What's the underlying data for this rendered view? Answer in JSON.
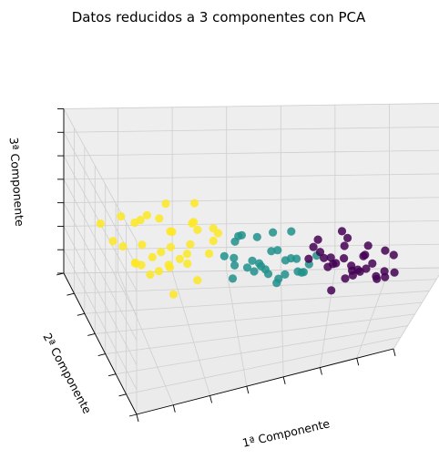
{
  "chart_data": {
    "type": "scatter",
    "title": "Datos reducidos a 3 componentes con PCA",
    "xlabel": "1ª Componente",
    "ylabel": "2ª Componente",
    "zlabel": "3ª Componente",
    "grid": true,
    "colors": {
      "cluster_0": "#440154",
      "cluster_1": "#21918c",
      "cluster_2": "#fde725"
    },
    "series": [
      {
        "color_key": "cluster_0",
        "points": [
          [
            0.72,
            0.15,
            0.55
          ],
          [
            0.76,
            0.2,
            0.48
          ],
          [
            0.8,
            0.12,
            0.42
          ],
          [
            0.84,
            0.25,
            0.38
          ],
          [
            0.7,
            0.28,
            0.52
          ],
          [
            0.78,
            0.3,
            0.45
          ],
          [
            0.86,
            0.18,
            0.5
          ],
          [
            0.9,
            0.22,
            0.35
          ],
          [
            0.74,
            0.35,
            0.4
          ],
          [
            0.82,
            0.38,
            0.33
          ],
          [
            0.88,
            0.1,
            0.46
          ],
          [
            0.68,
            0.2,
            0.6
          ],
          [
            0.92,
            0.3,
            0.3
          ],
          [
            0.8,
            0.42,
            0.28
          ],
          [
            0.75,
            0.08,
            0.58
          ],
          [
            0.85,
            0.32,
            0.44
          ],
          [
            0.94,
            0.15,
            0.4
          ],
          [
            0.72,
            0.4,
            0.36
          ],
          [
            0.78,
            0.22,
            0.65
          ],
          [
            0.88,
            0.4,
            0.25
          ],
          [
            0.66,
            0.3,
            0.48
          ],
          [
            0.83,
            0.05,
            0.52
          ],
          [
            0.96,
            0.25,
            0.34
          ],
          [
            0.7,
            0.12,
            0.68
          ],
          [
            0.86,
            0.45,
            0.32
          ],
          [
            0.79,
            0.33,
            0.55
          ],
          [
            0.91,
            0.38,
            0.42
          ],
          [
            0.74,
            0.25,
            0.3
          ],
          [
            0.89,
            0.08,
            0.6
          ],
          [
            0.81,
            0.28,
            0.38
          ],
          [
            0.77,
            0.46,
            0.44
          ],
          [
            0.93,
            0.44,
            0.36
          ]
        ]
      },
      {
        "color_key": "cluster_1",
        "points": [
          [
            0.4,
            0.2,
            0.58
          ],
          [
            0.45,
            0.28,
            0.5
          ],
          [
            0.5,
            0.35,
            0.45
          ],
          [
            0.55,
            0.25,
            0.4
          ],
          [
            0.48,
            0.42,
            0.38
          ],
          [
            0.58,
            0.4,
            0.35
          ],
          [
            0.42,
            0.5,
            0.42
          ],
          [
            0.52,
            0.55,
            0.3
          ],
          [
            0.6,
            0.3,
            0.5
          ],
          [
            0.46,
            0.15,
            0.62
          ],
          [
            0.56,
            0.48,
            0.28
          ],
          [
            0.62,
            0.2,
            0.55
          ],
          [
            0.38,
            0.38,
            0.52
          ],
          [
            0.54,
            0.62,
            0.36
          ],
          [
            0.64,
            0.45,
            0.32
          ],
          [
            0.44,
            0.6,
            0.48
          ],
          [
            0.58,
            0.12,
            0.6
          ],
          [
            0.5,
            0.7,
            0.4
          ],
          [
            0.66,
            0.35,
            0.42
          ],
          [
            0.4,
            0.28,
            0.45
          ],
          [
            0.62,
            0.58,
            0.25
          ],
          [
            0.48,
            0.05,
            0.66
          ],
          [
            0.56,
            0.72,
            0.3
          ],
          [
            0.52,
            0.22,
            0.48
          ],
          [
            0.68,
            0.5,
            0.38
          ],
          [
            0.42,
            0.45,
            0.55
          ],
          [
            0.6,
            0.65,
            0.45
          ],
          [
            0.46,
            0.8,
            0.35
          ],
          [
            0.64,
            0.1,
            0.52
          ],
          [
            0.54,
            0.38,
            0.62
          ]
        ]
      },
      {
        "color_key": "cluster_2",
        "points": [
          [
            0.1,
            0.2,
            0.62
          ],
          [
            0.15,
            0.3,
            0.55
          ],
          [
            0.2,
            0.4,
            0.5
          ],
          [
            0.25,
            0.5,
            0.45
          ],
          [
            0.18,
            0.6,
            0.4
          ],
          [
            0.28,
            0.55,
            0.38
          ],
          [
            0.12,
            0.45,
            0.48
          ],
          [
            0.22,
            0.7,
            0.35
          ],
          [
            0.3,
            0.65,
            0.42
          ],
          [
            0.08,
            0.35,
            0.58
          ],
          [
            0.26,
            0.8,
            0.3
          ],
          [
            0.32,
            0.75,
            0.48
          ],
          [
            0.14,
            0.55,
            0.52
          ],
          [
            0.24,
            0.9,
            0.4
          ],
          [
            0.34,
            0.85,
            0.36
          ],
          [
            0.16,
            0.7,
            0.55
          ],
          [
            0.28,
            0.95,
            0.28
          ],
          [
            0.06,
            0.25,
            0.66
          ],
          [
            0.2,
            0.85,
            0.46
          ],
          [
            0.3,
            0.6,
            0.58
          ],
          [
            0.36,
            0.7,
            0.32
          ],
          [
            0.1,
            0.65,
            0.44
          ],
          [
            0.22,
            0.5,
            0.62
          ],
          [
            0.34,
            0.95,
            0.45
          ],
          [
            0.18,
            0.95,
            0.34
          ],
          [
            0.26,
            0.4,
            0.55
          ],
          [
            0.12,
            0.8,
            0.5
          ],
          [
            0.38,
            0.8,
            0.4
          ],
          [
            0.04,
            0.5,
            0.6
          ],
          [
            0.3,
            0.45,
            0.35
          ],
          [
            0.16,
            0.15,
            0.68
          ],
          [
            0.24,
            0.75,
            0.6
          ],
          [
            0.36,
            0.55,
            0.5
          ],
          [
            0.08,
            0.9,
            0.38
          ],
          [
            0.4,
            0.9,
            0.3
          ],
          [
            0.2,
            0.3,
            0.4
          ]
        ]
      }
    ]
  }
}
